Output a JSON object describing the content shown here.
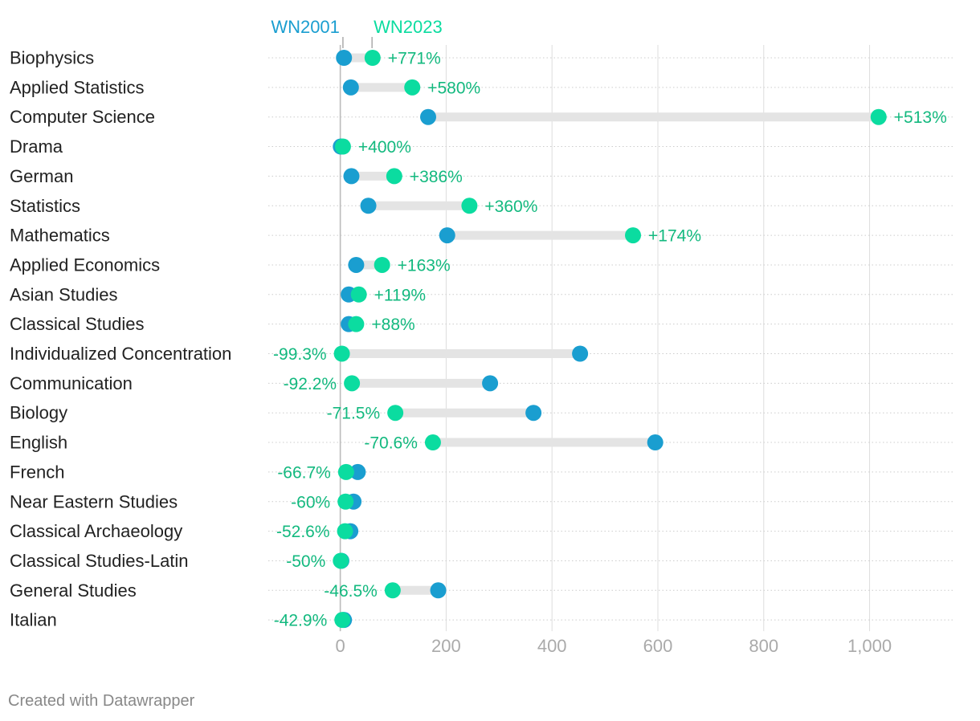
{
  "colors": {
    "wn2001": "#1a9ed0",
    "wn2023": "#0bdca0",
    "change_text": "#13b97f",
    "connector": "#e4e4e4",
    "grid": "#dddddd",
    "zero_line": "#bbbbbb"
  },
  "footer": {
    "credit": "Created with Datawrapper"
  },
  "chart_data": {
    "type": "range-dot",
    "title": "",
    "xlabel": "",
    "ylabel": "",
    "xlim": [
      -136,
      1160
    ],
    "xticks": [
      0,
      200,
      400,
      600,
      800,
      1000
    ],
    "xtick_labels": [
      "0",
      "200",
      "400",
      "600",
      "800",
      "1,000"
    ],
    "legend": [
      {
        "name": "WN2001",
        "value": 5
      },
      {
        "name": "WN2023",
        "value": 60
      }
    ],
    "series": [
      {
        "name": "WN2001"
      },
      {
        "name": "WN2023"
      }
    ],
    "rows": [
      {
        "label": "Biophysics",
        "wn2001": 7,
        "wn2023": 61,
        "change": "+771%"
      },
      {
        "label": "Applied Statistics",
        "wn2001": 20,
        "wn2023": 136,
        "change": "+580%"
      },
      {
        "label": "Computer Science",
        "wn2001": 166,
        "wn2023": 1017,
        "change": "+513%"
      },
      {
        "label": "Drama",
        "wn2001": 1,
        "wn2023": 5,
        "change": "+400%"
      },
      {
        "label": "German",
        "wn2001": 21,
        "wn2023": 102,
        "change": "+386%"
      },
      {
        "label": "Statistics",
        "wn2001": 53,
        "wn2023": 244,
        "change": "+360%"
      },
      {
        "label": "Mathematics",
        "wn2001": 202,
        "wn2023": 553,
        "change": "+174%"
      },
      {
        "label": "Applied Economics",
        "wn2001": 30,
        "wn2023": 79,
        "change": "+163%"
      },
      {
        "label": "Asian Studies",
        "wn2001": 16,
        "wn2023": 35,
        "change": "+119%"
      },
      {
        "label": "Classical Studies",
        "wn2001": 16,
        "wn2023": 30,
        "change": "+88%"
      },
      {
        "label": "Individualized Concentration",
        "wn2001": 453,
        "wn2023": 3,
        "change": "-99.3%"
      },
      {
        "label": "Communication",
        "wn2001": 283,
        "wn2023": 22,
        "change": "-92.2%"
      },
      {
        "label": "Biology",
        "wn2001": 365,
        "wn2023": 104,
        "change": "-71.5%"
      },
      {
        "label": "English",
        "wn2001": 595,
        "wn2023": 175,
        "change": "-70.6%"
      },
      {
        "label": "French",
        "wn2001": 33,
        "wn2023": 11,
        "change": "-66.7%"
      },
      {
        "label": "Near Eastern Studies",
        "wn2001": 25,
        "wn2023": 10,
        "change": "-60%"
      },
      {
        "label": "Classical Archaeology",
        "wn2001": 19,
        "wn2023": 9,
        "change": "-52.6%"
      },
      {
        "label": "Classical Studies-Latin",
        "wn2001": 2,
        "wn2023": 1,
        "change": "-50%"
      },
      {
        "label": "General Studies",
        "wn2001": 185,
        "wn2023": 99,
        "change": "-46.5%"
      },
      {
        "label": "Italian",
        "wn2001": 7,
        "wn2023": 4,
        "change": "-42.9%"
      }
    ]
  }
}
